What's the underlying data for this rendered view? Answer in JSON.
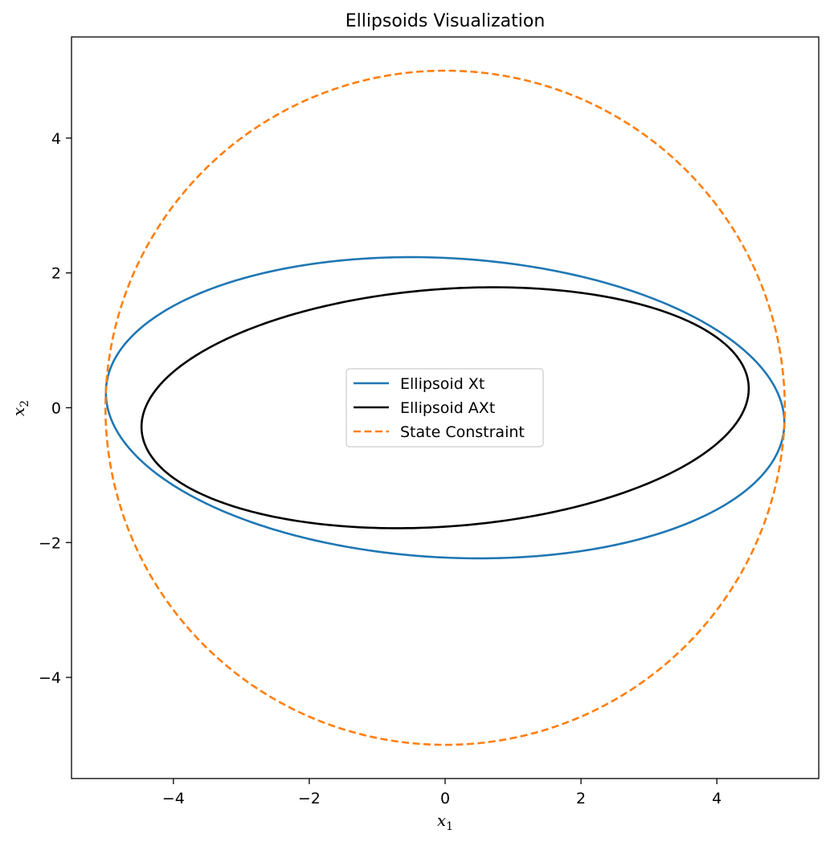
{
  "chart_data": {
    "type": "line",
    "title": "Ellipsoids Visualization",
    "xlabel": "x",
    "xlabel_sub": "1",
    "ylabel": "x",
    "ylabel_sub": "2",
    "xlim": [
      -5.5,
      5.5
    ],
    "ylim": [
      -5.5,
      5.5
    ],
    "xticks": [
      -4,
      -2,
      0,
      2,
      4
    ],
    "yticks": [
      -4,
      -2,
      0,
      2,
      4
    ],
    "xtick_labels": [
      "−4",
      "−2",
      "0",
      "2",
      "4"
    ],
    "ytick_labels": [
      "−4",
      "−2",
      "0",
      "2",
      "4"
    ],
    "grid": false,
    "legend_position": "center",
    "series": [
      {
        "name": "Ellipsoid Xt",
        "color": "#1f77b4",
        "style": "solid",
        "shape": "ellipse",
        "center": [
          0,
          0
        ],
        "semi_major": 5.0,
        "semi_minor": 2.22,
        "angle_deg": -3.2
      },
      {
        "name": "Ellipsoid AXt",
        "color": "#000000",
        "style": "solid",
        "shape": "ellipse",
        "center": [
          0,
          0
        ],
        "semi_major": 4.48,
        "semi_minor": 1.76,
        "angle_deg": 4.3
      },
      {
        "name": "State Constraint",
        "color": "#ff7f0e",
        "style": "dashed",
        "shape": "circle",
        "center": [
          0,
          0
        ],
        "radius": 5.0
      }
    ]
  }
}
